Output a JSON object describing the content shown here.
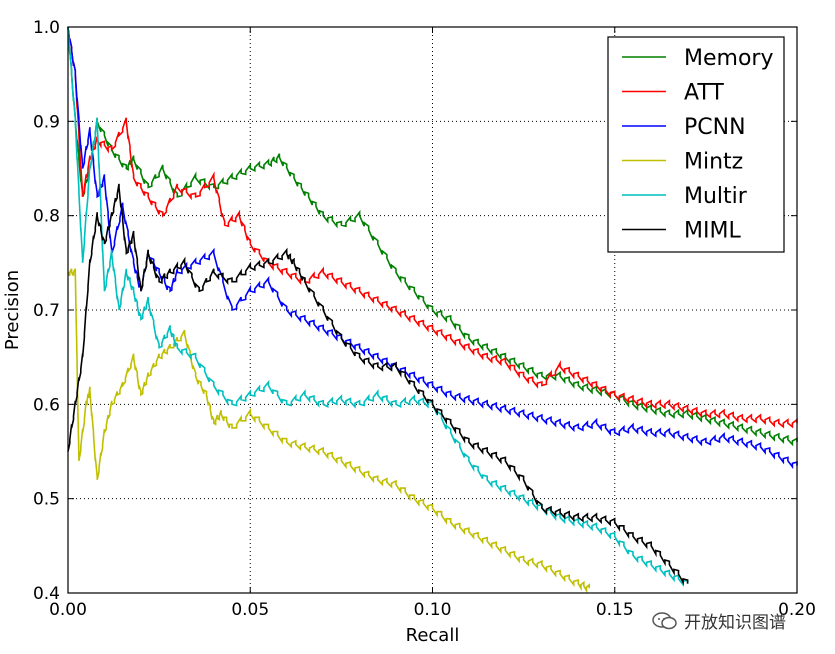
{
  "chart_data": {
    "type": "line",
    "title": "",
    "xlabel": "Recall",
    "ylabel": "Precision",
    "xlim": [
      0.0,
      0.2
    ],
    "ylim": [
      0.4,
      1.0
    ],
    "xticks": [
      "0.00",
      "0.05",
      "0.10",
      "0.15",
      "0.20"
    ],
    "yticks": [
      "0.4",
      "0.5",
      "0.6",
      "0.7",
      "0.8",
      "0.9",
      "1.0"
    ],
    "grid": true,
    "legend_position": "top-right",
    "series": [
      {
        "name": "Memory",
        "color": "#008000",
        "x": [
          0.0,
          0.002,
          0.004,
          0.006,
          0.008,
          0.012,
          0.016,
          0.018,
          0.022,
          0.026,
          0.03,
          0.035,
          0.04,
          0.045,
          0.05,
          0.055,
          0.058,
          0.062,
          0.066,
          0.07,
          0.075,
          0.08,
          0.085,
          0.09,
          0.095,
          0.1,
          0.105,
          0.11,
          0.115,
          0.12,
          0.125,
          0.13,
          0.135,
          0.14,
          0.145,
          0.15,
          0.155,
          0.16,
          0.165,
          0.17,
          0.175,
          0.18,
          0.185,
          0.19,
          0.195,
          0.2
        ],
        "y": [
          1.0,
          0.9,
          0.82,
          0.85,
          0.9,
          0.87,
          0.85,
          0.86,
          0.83,
          0.85,
          0.82,
          0.84,
          0.83,
          0.84,
          0.85,
          0.855,
          0.862,
          0.84,
          0.82,
          0.8,
          0.79,
          0.8,
          0.77,
          0.74,
          0.72,
          0.7,
          0.69,
          0.67,
          0.66,
          0.65,
          0.64,
          0.63,
          0.63,
          0.62,
          0.615,
          0.61,
          0.6,
          0.595,
          0.59,
          0.59,
          0.585,
          0.58,
          0.575,
          0.57,
          0.565,
          0.56
        ]
      },
      {
        "name": "ATT",
        "color": "#ff0000",
        "x": [
          0.0,
          0.002,
          0.004,
          0.006,
          0.008,
          0.012,
          0.016,
          0.018,
          0.022,
          0.026,
          0.03,
          0.035,
          0.04,
          0.043,
          0.047,
          0.05,
          0.055,
          0.06,
          0.065,
          0.07,
          0.075,
          0.08,
          0.085,
          0.09,
          0.095,
          0.1,
          0.105,
          0.11,
          0.115,
          0.12,
          0.125,
          0.13,
          0.135,
          0.14,
          0.145,
          0.15,
          0.155,
          0.16,
          0.165,
          0.17,
          0.175,
          0.18,
          0.185,
          0.19,
          0.195,
          0.2
        ],
        "y": [
          1.0,
          0.95,
          0.82,
          0.86,
          0.88,
          0.87,
          0.9,
          0.84,
          0.82,
          0.8,
          0.83,
          0.82,
          0.84,
          0.79,
          0.8,
          0.77,
          0.75,
          0.74,
          0.73,
          0.74,
          0.73,
          0.72,
          0.71,
          0.7,
          0.69,
          0.68,
          0.67,
          0.66,
          0.65,
          0.645,
          0.63,
          0.62,
          0.64,
          0.63,
          0.62,
          0.61,
          0.605,
          0.6,
          0.6,
          0.595,
          0.59,
          0.59,
          0.585,
          0.585,
          0.58,
          0.58
        ]
      },
      {
        "name": "PCNN",
        "color": "#0000ff",
        "x": [
          0.0,
          0.002,
          0.004,
          0.006,
          0.008,
          0.01,
          0.012,
          0.015,
          0.018,
          0.02,
          0.022,
          0.025,
          0.028,
          0.03,
          0.035,
          0.04,
          0.045,
          0.05,
          0.055,
          0.06,
          0.065,
          0.07,
          0.075,
          0.08,
          0.085,
          0.09,
          0.095,
          0.1,
          0.105,
          0.11,
          0.115,
          0.12,
          0.125,
          0.13,
          0.135,
          0.14,
          0.145,
          0.15,
          0.155,
          0.16,
          0.165,
          0.17,
          0.175,
          0.18,
          0.185,
          0.19,
          0.195,
          0.2
        ],
        "y": [
          1.0,
          0.95,
          0.85,
          0.89,
          0.82,
          0.84,
          0.76,
          0.81,
          0.75,
          0.72,
          0.76,
          0.74,
          0.72,
          0.74,
          0.75,
          0.76,
          0.7,
          0.72,
          0.73,
          0.7,
          0.69,
          0.68,
          0.67,
          0.66,
          0.65,
          0.64,
          0.63,
          0.62,
          0.61,
          0.605,
          0.6,
          0.595,
          0.59,
          0.585,
          0.58,
          0.575,
          0.58,
          0.57,
          0.575,
          0.57,
          0.57,
          0.565,
          0.56,
          0.565,
          0.56,
          0.555,
          0.545,
          0.535
        ]
      },
      {
        "name": "Mintz",
        "color": "#bfbf00",
        "x": [
          0.0,
          0.002,
          0.003,
          0.005,
          0.006,
          0.008,
          0.01,
          0.012,
          0.015,
          0.018,
          0.02,
          0.022,
          0.025,
          0.028,
          0.032,
          0.035,
          0.038,
          0.04,
          0.042,
          0.045,
          0.05,
          0.055,
          0.06,
          0.065,
          0.07,
          0.075,
          0.08,
          0.085,
          0.09,
          0.095,
          0.1,
          0.105,
          0.11,
          0.115,
          0.12,
          0.125,
          0.13,
          0.135,
          0.14,
          0.143
        ],
        "y": [
          0.74,
          0.74,
          0.54,
          0.6,
          0.615,
          0.52,
          0.57,
          0.6,
          0.62,
          0.65,
          0.61,
          0.63,
          0.65,
          0.66,
          0.675,
          0.63,
          0.61,
          0.58,
          0.59,
          0.575,
          0.59,
          0.575,
          0.56,
          0.555,
          0.55,
          0.54,
          0.53,
          0.52,
          0.515,
          0.5,
          0.49,
          0.475,
          0.465,
          0.455,
          0.445,
          0.435,
          0.43,
          0.42,
          0.41,
          0.405
        ]
      },
      {
        "name": "Multir",
        "color": "#00bfbf",
        "x": [
          0.0,
          0.002,
          0.004,
          0.006,
          0.008,
          0.01,
          0.012,
          0.014,
          0.016,
          0.018,
          0.02,
          0.022,
          0.025,
          0.028,
          0.03,
          0.035,
          0.04,
          0.045,
          0.05,
          0.055,
          0.06,
          0.065,
          0.07,
          0.075,
          0.08,
          0.085,
          0.09,
          0.095,
          0.1,
          0.105,
          0.11,
          0.115,
          0.12,
          0.125,
          0.13,
          0.135,
          0.14,
          0.145,
          0.15,
          0.155,
          0.16,
          0.165,
          0.17
        ],
        "y": [
          1.0,
          0.9,
          0.75,
          0.85,
          0.9,
          0.72,
          0.76,
          0.7,
          0.74,
          0.72,
          0.69,
          0.71,
          0.66,
          0.68,
          0.66,
          0.65,
          0.62,
          0.6,
          0.61,
          0.62,
          0.6,
          0.61,
          0.6,
          0.605,
          0.6,
          0.61,
          0.6,
          0.605,
          0.6,
          0.57,
          0.54,
          0.52,
          0.51,
          0.5,
          0.49,
          0.48,
          0.475,
          0.47,
          0.46,
          0.44,
          0.43,
          0.42,
          0.41
        ]
      },
      {
        "name": "MIML",
        "color": "#000000",
        "x": [
          0.0,
          0.002,
          0.004,
          0.006,
          0.008,
          0.01,
          0.012,
          0.014,
          0.016,
          0.018,
          0.02,
          0.022,
          0.025,
          0.028,
          0.032,
          0.036,
          0.04,
          0.045,
          0.05,
          0.055,
          0.06,
          0.062,
          0.065,
          0.07,
          0.075,
          0.08,
          0.085,
          0.09,
          0.095,
          0.1,
          0.105,
          0.11,
          0.115,
          0.12,
          0.125,
          0.13,
          0.135,
          0.14,
          0.145,
          0.15,
          0.155,
          0.16,
          0.165,
          0.17
        ],
        "y": [
          0.55,
          0.6,
          0.65,
          0.75,
          0.8,
          0.77,
          0.8,
          0.83,
          0.76,
          0.78,
          0.72,
          0.76,
          0.73,
          0.74,
          0.75,
          0.72,
          0.74,
          0.73,
          0.745,
          0.75,
          0.76,
          0.75,
          0.73,
          0.7,
          0.67,
          0.65,
          0.64,
          0.64,
          0.62,
          0.6,
          0.58,
          0.56,
          0.55,
          0.54,
          0.52,
          0.49,
          0.485,
          0.48,
          0.48,
          0.475,
          0.46,
          0.45,
          0.43,
          0.41
        ]
      }
    ]
  },
  "watermark": {
    "text": "开放知识图谱",
    "icon": "wechat-icon"
  }
}
